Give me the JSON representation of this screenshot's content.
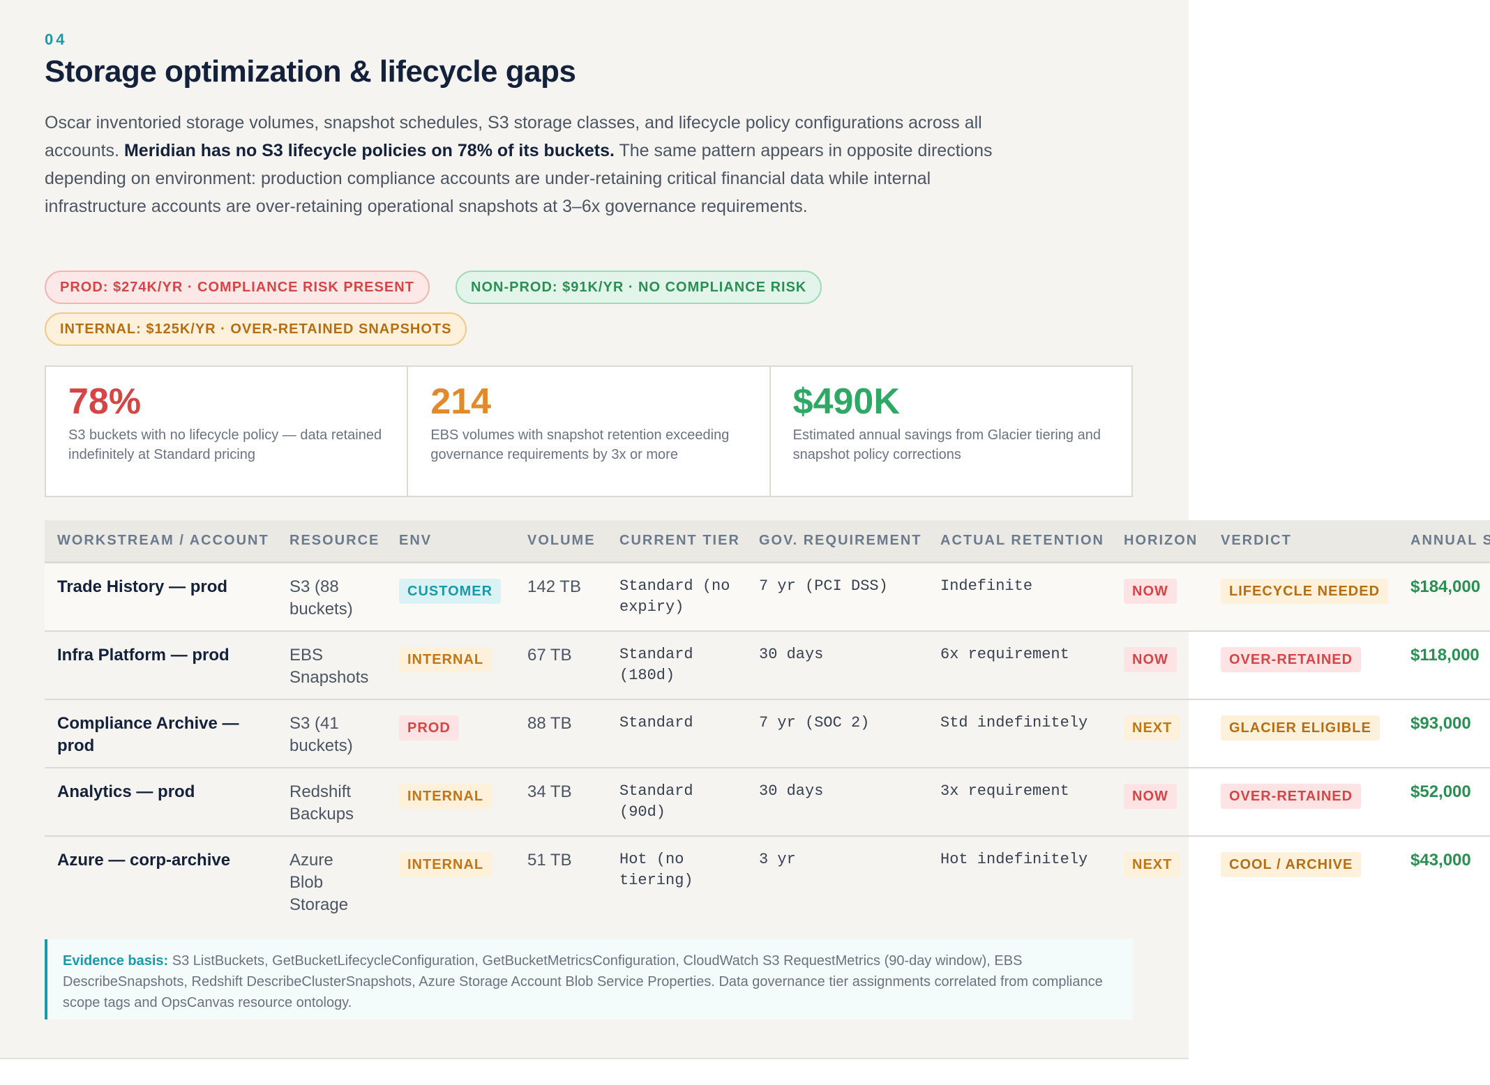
{
  "section": {
    "number": "04",
    "title": "Storage optimization & lifecycle gaps",
    "intro_a": "Oscar inventoried storage volumes, snapshot schedules, S3 storage classes, and lifecycle policy configurations across all accounts.",
    "intro_bold": "Meridian has no S3 lifecycle policies on 78% of its buckets.",
    "intro_b": "The same pattern appears in opposite directions depending on environment: production compliance accounts are under-retaining critical financial data while internal infrastructure accounts are over-retaining operational snapshots at 3–6x governance requirements."
  },
  "pills": {
    "prod": "PROD: $274K/YR · COMPLIANCE RISK PRESENT",
    "nonprod": "NON-PROD: $91K/YR · NO COMPLIANCE RISK",
    "internal": "INTERNAL: $125K/YR · OVER-RETAINED SNAPSHOTS"
  },
  "stats": [
    {
      "value": "78%",
      "desc": "S3 buckets with no lifecycle policy — data retained indefinitely at Standard pricing",
      "color": "#d64545"
    },
    {
      "value": "214",
      "desc": "EBS volumes with snapshot retention exceeding governance requirements by 3x or more",
      "color": "#e28a2b"
    },
    {
      "value": "$490K",
      "desc": "Estimated annual savings from Glacier tiering and snapshot policy corrections",
      "color": "#2fa866"
    }
  ],
  "table": {
    "headers": [
      "WORKSTREAM / ACCOUNT",
      "RESOURCE",
      "ENV",
      "VOLUME",
      "CURRENT TIER",
      "GOV. REQUIREMENT",
      "ACTUAL RETENTION",
      "HORIZON",
      "VERDICT",
      "ANNUAL S"
    ],
    "rows": [
      {
        "account": "Trade History — prod",
        "resource": "S3 (88 buckets)",
        "env": "CUSTOMER",
        "volume": "142 TB",
        "tier": "Standard (no expiry)",
        "gov": "7 yr (PCI DSS)",
        "actual": "Indefinite",
        "horizon": "NOW",
        "verdict": "LIFECYCLE NEEDED",
        "savings": "$184,000"
      },
      {
        "account": "Infra Platform — prod",
        "resource": "EBS Snapshots",
        "env": "INTERNAL",
        "volume": "67 TB",
        "tier": "Standard (180d)",
        "gov": "30 days",
        "actual": "6x requirement",
        "horizon": "NOW",
        "verdict": "OVER-RETAINED",
        "savings": "$118,000"
      },
      {
        "account": "Compliance Archive — prod",
        "resource": "S3 (41 buckets)",
        "env": "PROD",
        "volume": "88 TB",
        "tier": "Standard",
        "gov": "7 yr (SOC 2)",
        "actual": "Std indefinitely",
        "horizon": "NEXT",
        "verdict": "GLACIER ELIGIBLE",
        "savings": "$93,000"
      },
      {
        "account": "Analytics — prod",
        "resource": "Redshift Backups",
        "env": "INTERNAL",
        "volume": "34 TB",
        "tier": "Standard (90d)",
        "gov": "30 days",
        "actual": "3x requirement",
        "horizon": "NOW",
        "verdict": "OVER-RETAINED",
        "savings": "$52,000"
      },
      {
        "account": "Azure — corp-archive",
        "resource": "Azure Blob Storage",
        "env": "INTERNAL",
        "volume": "51 TB",
        "tier": "Hot (no tiering)",
        "gov": "3 yr",
        "actual": "Hot indefinitely",
        "horizon": "NEXT",
        "verdict": "COOL / ARCHIVE",
        "savings": "$43,000"
      }
    ]
  },
  "evidence": {
    "label": "Evidence basis:",
    "text": "S3 ListBuckets, GetBucketLifecycleConfiguration, GetBucketMetricsConfiguration, CloudWatch S3 RequestMetrics (90-day window), EBS DescribeSnapshots, Redshift DescribeClusterSnapshots, Azure Storage Account Blob Service Properties. Data governance tier assignments correlated from compliance scope tags and OpsCanvas resource ontology."
  }
}
